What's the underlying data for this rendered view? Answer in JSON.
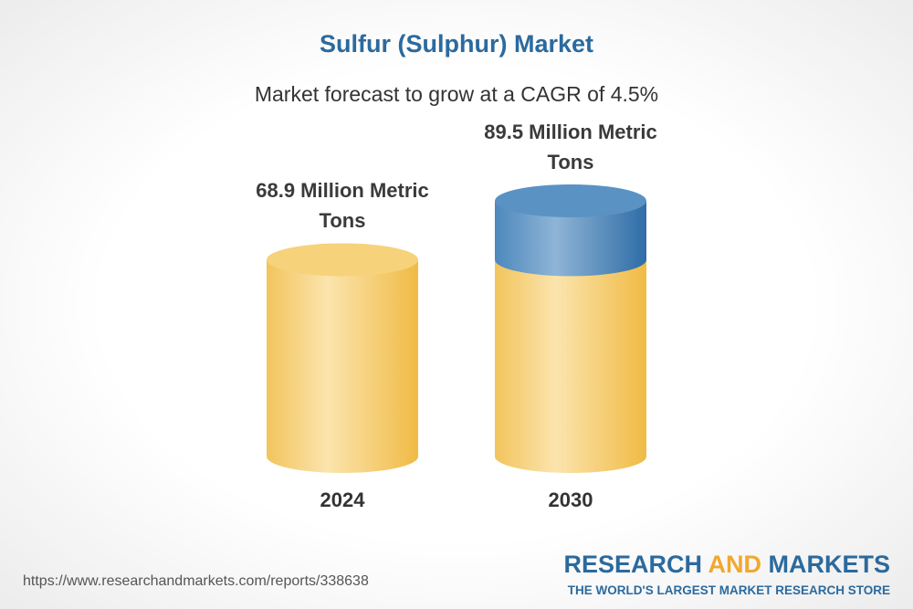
{
  "chart_data": {
    "type": "cylinder",
    "title": "Sulfur (Sulphur) Market",
    "subtitle": "Market forecast to grow at a CAGR of 4.5%",
    "categories": [
      "2024",
      "2030"
    ],
    "values": [
      68.9,
      89.5
    ],
    "value_labels": [
      "68.9 Million Metric Tons",
      "89.5 Million Metric Tons"
    ],
    "colors": {
      "base": "#f2c14e",
      "growth": "#3a78ad"
    }
  },
  "footer": {
    "url": "https://www.researchandmarkets.com/reports/338638",
    "brand": [
      "RESEARCH",
      "AND",
      "MARKETS"
    ],
    "tagline": "THE WORLD'S LARGEST MARKET RESEARCH STORE"
  }
}
